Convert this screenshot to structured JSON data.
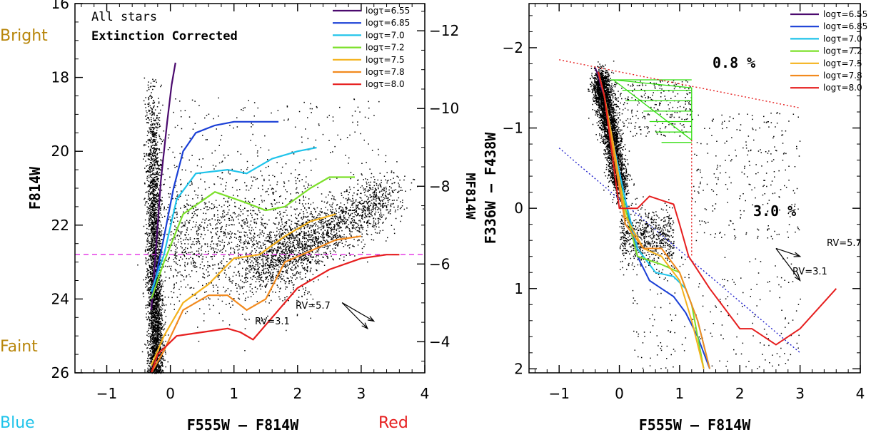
{
  "legend_entries": [
    "logτ=6.55",
    "logτ=6.85",
    "logτ=7.0",
    "logτ=7.2",
    "logτ=7.5",
    "logτ=7.8",
    "logτ=8.0"
  ],
  "left_panel": {
    "title_line1": "All stars",
    "title_line2": "Extinction Corrected",
    "xlabel": "F555W  –  F814W",
    "ylabel": "F814W",
    "y2label": "MF814W",
    "bright_label": "Bright",
    "faint_label": "Faint",
    "blue_label": "Blue",
    "red_label": "Red",
    "rv_large": "RV=5.7",
    "rv_small": "RV=3.1",
    "x_ticks": [
      "−1",
      "0",
      "1",
      "2",
      "3",
      "4"
    ],
    "y_ticks": [
      "16",
      "18",
      "20",
      "22",
      "24",
      "26"
    ],
    "y2_ticks": [
      "−12",
      "−10",
      "−8",
      "−6",
      "−4"
    ]
  },
  "right_panel": {
    "xlabel": "F555W  –  F814W",
    "ylabel": "F336W  –  F438W",
    "pct_top": "0.8 %",
    "pct_mid": "3.0 %",
    "rv_large": "RV=5.7",
    "rv_small": "RV=3.1",
    "x_ticks": [
      "−1",
      "0",
      "1",
      "2",
      "3",
      "4"
    ],
    "y_ticks": [
      "−2",
      "−1",
      "0",
      "1",
      "2"
    ]
  },
  "colors": {
    "iso_6_55": "#4b0a6e",
    "iso_6_85": "#1a3fd6",
    "iso_7_0": "#1ec3ea",
    "iso_7_2": "#7ce02a",
    "iso_7_5": "#f4b21c",
    "iso_7_8": "#f28a1e",
    "iso_8_0": "#e61e1e",
    "cut_line": "#e63fe6",
    "bright_faint": "#b8860b",
    "blue_text": "#1ec3ea",
    "red_text": "#e61e1e"
  },
  "chart_data": [
    {
      "type": "scatter",
      "title": "All stars / Extinction Corrected",
      "xlabel": "F555W – F814W",
      "ylabel": "F814W",
      "y2label": "MF814W",
      "xlim": [
        -1.5,
        4.0
      ],
      "ylim": [
        26,
        16
      ],
      "y2lim": [
        -3.2,
        -12.7
      ],
      "magnitude_cut": 22.8,
      "legend_position": "top-right",
      "series": [
        {
          "name": "logτ=6.55",
          "x": [
            -0.3,
            -0.22,
            -0.15,
            -0.05,
            0.02,
            0.08
          ],
          "y": [
            24.3,
            22.5,
            20.8,
            19.2,
            18.2,
            17.6
          ]
        },
        {
          "name": "logτ=6.85",
          "x": [
            -0.3,
            -0.12,
            0.05,
            0.2,
            0.4,
            0.7,
            1.0,
            1.4,
            1.7
          ],
          "y": [
            24.0,
            22.5,
            21.0,
            20.0,
            19.5,
            19.3,
            19.2,
            19.2,
            19.2
          ]
        },
        {
          "name": "logτ=7.0",
          "x": [
            -0.3,
            -0.1,
            0.1,
            0.4,
            0.9,
            1.2,
            1.6,
            2.0,
            2.3
          ],
          "y": [
            23.8,
            22.8,
            21.3,
            20.6,
            20.5,
            20.6,
            20.2,
            20.0,
            19.9
          ]
        },
        {
          "name": "logτ=7.2",
          "x": [
            -0.3,
            -0.1,
            0.2,
            0.7,
            1.2,
            1.5,
            1.8,
            2.2,
            2.5,
            2.9
          ],
          "y": [
            24.0,
            23.0,
            21.7,
            21.1,
            21.4,
            21.6,
            21.5,
            21.0,
            20.7,
            20.7
          ]
        },
        {
          "name": "logτ=7.5",
          "x": [
            -0.3,
            -0.1,
            0.2,
            0.6,
            1.0,
            1.4,
            1.8,
            2.2,
            2.6
          ],
          "y": [
            25.8,
            25.0,
            24.1,
            23.6,
            22.9,
            22.8,
            22.3,
            21.9,
            21.7
          ]
        },
        {
          "name": "logτ=7.8",
          "x": [
            -0.3,
            -0.1,
            0.2,
            0.6,
            0.9,
            1.2,
            1.5,
            1.8,
            2.2,
            2.6,
            3.0
          ],
          "y": [
            26.0,
            25.4,
            24.3,
            23.9,
            23.9,
            24.3,
            24.0,
            23.0,
            22.7,
            22.4,
            22.3
          ]
        },
        {
          "name": "logτ=8.0",
          "x": [
            -0.3,
            -0.2,
            0.1,
            0.5,
            0.9,
            1.1,
            1.3,
            1.6,
            2.0,
            2.5,
            3.0,
            3.4,
            3.6
          ],
          "y": [
            26.0,
            25.5,
            25.0,
            24.9,
            24.8,
            24.9,
            25.1,
            24.5,
            23.7,
            23.2,
            22.9,
            22.8,
            22.8
          ]
        }
      ],
      "reddening_vectors": [
        {
          "label": "RV=5.7",
          "from": [
            2.7,
            24.1
          ],
          "to": [
            3.2,
            24.6
          ]
        },
        {
          "label": "RV=3.1",
          "from": [
            2.7,
            24.1
          ],
          "to": [
            3.1,
            24.8
          ]
        }
      ]
    },
    {
      "type": "scatter",
      "xlabel": "F555W – F814W",
      "ylabel": "F336W – F438W",
      "xlim": [
        -1.5,
        4.0
      ],
      "ylim": [
        2.05,
        -2.55
      ],
      "legend_position": "top-right",
      "annotations": [
        "0.8 %",
        "3.0 %"
      ],
      "series": [
        {
          "name": "logτ=6.55",
          "x": [
            -0.4,
            -0.35,
            -0.3,
            -0.25
          ],
          "y": [
            -1.75,
            -1.65,
            -1.5,
            -1.4
          ]
        },
        {
          "name": "logτ=6.85",
          "x": [
            -0.35,
            -0.25,
            -0.1,
            0.1,
            0.3,
            0.5,
            0.7,
            0.9,
            1.1,
            1.3,
            1.5
          ],
          "y": [
            -1.7,
            -1.4,
            -0.8,
            -0.1,
            0.6,
            0.9,
            1.0,
            1.1,
            1.3,
            1.6,
            2.0
          ]
        },
        {
          "name": "logτ=7.0",
          "x": [
            -0.35,
            -0.25,
            -0.1,
            0.1,
            0.3,
            0.6,
            0.9,
            1.1,
            1.3,
            1.5
          ],
          "y": [
            -1.7,
            -1.4,
            -0.8,
            -0.1,
            0.5,
            0.8,
            0.85,
            1.0,
            1.4,
            2.0
          ]
        },
        {
          "name": "logτ=7.2",
          "x": [
            -0.35,
            -0.25,
            -0.1,
            0.1,
            0.3,
            0.7,
            1.0,
            1.2,
            1.4
          ],
          "y": [
            -1.7,
            -1.4,
            -0.7,
            0.0,
            0.6,
            0.7,
            0.8,
            1.2,
            2.0
          ]
        },
        {
          "name": "logτ=7.5",
          "x": [
            -0.35,
            -0.25,
            -0.1,
            0.1,
            0.4,
            0.7,
            1.0,
            1.2,
            1.4
          ],
          "y": [
            -1.7,
            -1.4,
            -0.8,
            0.1,
            0.5,
            0.6,
            0.9,
            1.4,
            2.0
          ]
        },
        {
          "name": "logτ=7.8",
          "x": [
            -0.35,
            -0.25,
            -0.1,
            0.1,
            0.4,
            0.7,
            1.0,
            1.3,
            1.5
          ],
          "y": [
            -1.7,
            -1.4,
            -0.7,
            0.2,
            0.5,
            0.5,
            0.8,
            1.4,
            2.0
          ]
        },
        {
          "name": "logτ=8.0",
          "x": [
            -0.35,
            -0.25,
            0.0,
            0.3,
            0.5,
            0.7,
            0.9,
            1.0,
            1.15,
            1.5,
            2.0,
            2.2,
            2.6,
            3.0,
            3.6
          ],
          "y": [
            -1.7,
            -1.4,
            0.0,
            0.0,
            -0.15,
            -0.1,
            -0.05,
            0.2,
            0.6,
            1.0,
            1.5,
            1.5,
            1.7,
            1.5,
            1.0
          ]
        }
      ],
      "reference_lines": [
        {
          "style": "dotted",
          "color": "red",
          "x": [
            -1.0,
            3.0
          ],
          "y": [
            -1.85,
            -1.25
          ]
        },
        {
          "style": "dotted",
          "color": "blue",
          "x": [
            -1.0,
            3.0
          ],
          "y": [
            -0.75,
            1.8
          ]
        },
        {
          "style": "dotted",
          "color": "red",
          "x": [
            1.2,
            1.2
          ],
          "y": [
            -0.85,
            0.6
          ]
        }
      ],
      "reddening_vectors": [
        {
          "label": "RV=5.7",
          "from": [
            2.6,
            0.5
          ],
          "to": [
            3.0,
            0.6
          ]
        },
        {
          "label": "RV=3.1",
          "from": [
            2.6,
            0.5
          ],
          "to": [
            3.0,
            0.9
          ]
        }
      ]
    }
  ]
}
